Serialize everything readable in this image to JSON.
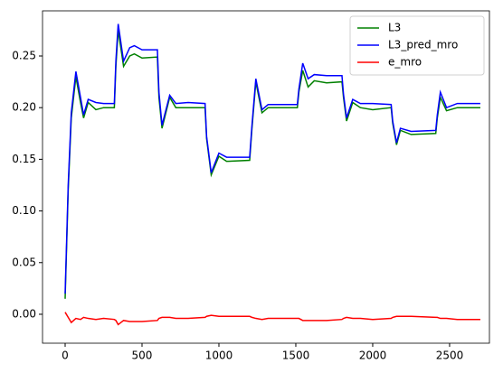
{
  "chart_data": {
    "type": "line",
    "x": [
      0,
      20,
      40,
      70,
      100,
      120,
      150,
      200,
      250,
      320,
      330,
      345,
      380,
      420,
      450,
      500,
      600,
      610,
      630,
      680,
      720,
      800,
      910,
      920,
      950,
      1000,
      1050,
      1200,
      1215,
      1240,
      1280,
      1320,
      1400,
      1510,
      1520,
      1545,
      1580,
      1620,
      1700,
      1800,
      1810,
      1830,
      1870,
      1920,
      2000,
      2120,
      2130,
      2155,
      2180,
      2250,
      2410,
      2420,
      2440,
      2480,
      2550,
      2700
    ],
    "series": [
      {
        "name": "L3",
        "color": "#008000",
        "values": [
          0.015,
          0.12,
          0.19,
          0.23,
          0.205,
          0.19,
          0.205,
          0.198,
          0.2,
          0.2,
          0.24,
          0.275,
          0.24,
          0.25,
          0.252,
          0.248,
          0.249,
          0.21,
          0.18,
          0.21,
          0.2,
          0.2,
          0.2,
          0.17,
          0.135,
          0.153,
          0.148,
          0.149,
          0.18,
          0.225,
          0.195,
          0.2,
          0.2,
          0.2,
          0.215,
          0.236,
          0.22,
          0.226,
          0.224,
          0.225,
          0.21,
          0.187,
          0.205,
          0.2,
          0.198,
          0.2,
          0.185,
          0.164,
          0.178,
          0.174,
          0.175,
          0.19,
          0.21,
          0.197,
          0.2,
          0.2
        ]
      },
      {
        "name": "L3_pred_mro",
        "color": "#0000ff",
        "values": [
          0.02,
          0.125,
          0.195,
          0.235,
          0.21,
          0.193,
          0.208,
          0.205,
          0.204,
          0.204,
          0.245,
          0.281,
          0.245,
          0.258,
          0.26,
          0.256,
          0.256,
          0.215,
          0.183,
          0.212,
          0.204,
          0.205,
          0.204,
          0.172,
          0.137,
          0.156,
          0.152,
          0.152,
          0.183,
          0.228,
          0.198,
          0.203,
          0.203,
          0.203,
          0.218,
          0.243,
          0.228,
          0.232,
          0.231,
          0.231,
          0.213,
          0.19,
          0.208,
          0.204,
          0.204,
          0.203,
          0.187,
          0.166,
          0.18,
          0.177,
          0.178,
          0.193,
          0.215,
          0.2,
          0.204,
          0.204
        ]
      },
      {
        "name": "e_mro",
        "color": "#ff0000",
        "values": [
          0.002,
          -0.003,
          -0.008,
          -0.004,
          -0.005,
          -0.003,
          -0.004,
          -0.005,
          -0.004,
          -0.005,
          -0.006,
          -0.01,
          -0.006,
          -0.007,
          -0.007,
          -0.007,
          -0.006,
          -0.004,
          -0.003,
          -0.003,
          -0.004,
          -0.004,
          -0.003,
          -0.002,
          -0.001,
          -0.002,
          -0.002,
          -0.002,
          -0.003,
          -0.004,
          -0.005,
          -0.004,
          -0.004,
          -0.004,
          -0.004,
          -0.006,
          -0.006,
          -0.006,
          -0.006,
          -0.005,
          -0.004,
          -0.003,
          -0.004,
          -0.004,
          -0.005,
          -0.004,
          -0.003,
          -0.002,
          -0.002,
          -0.002,
          -0.003,
          -0.003,
          -0.004,
          -0.004,
          -0.005,
          -0.005
        ]
      }
    ],
    "xlim": [
      -147,
      2759
    ],
    "xticks": [
      0,
      500,
      1000,
      1500,
      2000,
      2500
    ],
    "ylim": [
      -0.028,
      0.2937
    ],
    "yticks": [
      {
        "value": 0,
        "label": "0.00"
      },
      {
        "value": 0.05,
        "label": "0.05"
      },
      {
        "value": 0.1,
        "label": "0.10"
      },
      {
        "value": 0.15,
        "label": "0.15"
      },
      {
        "value": 0.2,
        "label": "0.20"
      },
      {
        "value": 0.25,
        "label": "0.25"
      }
    ],
    "legend": "upper right"
  }
}
